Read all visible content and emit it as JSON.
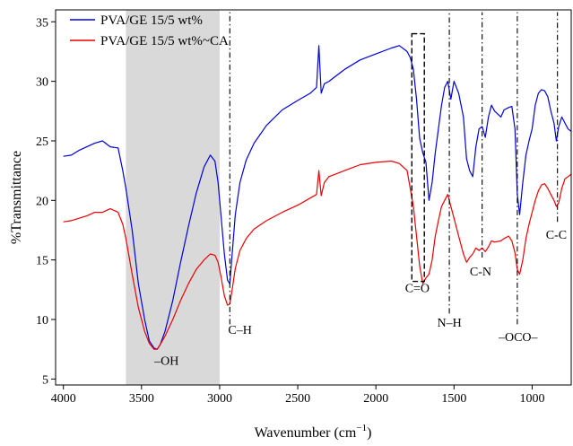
{
  "chart_data": {
    "type": "line",
    "title": "",
    "xlabel": "Wavenumber (cm",
    "xlabel_sup": "−1",
    "xlabel_close": ")",
    "ylabel": "%Transmittance",
    "xlim": [
      4050,
      750
    ],
    "ylim": [
      4.5,
      36
    ],
    "x_reversed": true,
    "xticks": [
      4000,
      3500,
      3000,
      2500,
      2000,
      1500,
      1000
    ],
    "xtick_labels": [
      "4000",
      "3500",
      "3000",
      "2500",
      "2000",
      "1500",
      "1000"
    ],
    "yticks": [
      5,
      10,
      15,
      20,
      25,
      30,
      35
    ],
    "ytick_labels": [
      "5",
      "10",
      "15",
      "20",
      "25",
      "30",
      "35"
    ],
    "grid": false,
    "legend_position": "top-left",
    "shaded_band": {
      "x_from": 3600,
      "x_to": 3000,
      "color": "#d9d9d9"
    },
    "series": [
      {
        "name": "PVA/GE 15/5 wt%",
        "color": "#0000dd",
        "x": [
          4000,
          3950,
          3900,
          3850,
          3800,
          3750,
          3700,
          3650,
          3620,
          3600,
          3560,
          3520,
          3480,
          3450,
          3420,
          3400,
          3380,
          3350,
          3300,
          3250,
          3200,
          3150,
          3100,
          3060,
          3030,
          3010,
          2990,
          2970,
          2950,
          2935,
          2920,
          2900,
          2870,
          2830,
          2780,
          2700,
          2600,
          2500,
          2420,
          2380,
          2365,
          2350,
          2330,
          2300,
          2200,
          2100,
          2000,
          1900,
          1850,
          1800,
          1780,
          1760,
          1740,
          1720,
          1700,
          1680,
          1660,
          1640,
          1620,
          1600,
          1580,
          1560,
          1540,
          1520,
          1500,
          1470,
          1440,
          1420,
          1400,
          1380,
          1360,
          1340,
          1320,
          1300,
          1280,
          1260,
          1240,
          1200,
          1180,
          1150,
          1130,
          1110,
          1095,
          1080,
          1060,
          1040,
          1020,
          1000,
          980,
          960,
          940,
          920,
          900,
          880,
          860,
          845,
          830,
          810,
          790,
          770,
          750
        ],
        "y": [
          23.7,
          23.8,
          24.2,
          24.5,
          24.8,
          25.0,
          24.5,
          24.4,
          22.5,
          21.0,
          17.5,
          13.0,
          10.0,
          8.2,
          7.6,
          7.5,
          7.9,
          9.0,
          11.6,
          14.8,
          17.8,
          20.6,
          22.8,
          23.8,
          23.3,
          21.5,
          18.5,
          15.5,
          13.3,
          13.0,
          15.5,
          18.8,
          21.5,
          23.4,
          24.8,
          26.3,
          27.6,
          28.4,
          29.0,
          29.5,
          33.0,
          29.0,
          29.8,
          30.0,
          31.0,
          31.8,
          32.3,
          32.8,
          33.0,
          32.5,
          32.0,
          31.0,
          28.5,
          25.2,
          24.0,
          23.2,
          20.0,
          21.5,
          24.0,
          26.0,
          28.0,
          29.5,
          30.0,
          28.5,
          30.0,
          29.0,
          27.0,
          23.5,
          22.5,
          22.0,
          24.5,
          26.0,
          26.2,
          25.3,
          27.0,
          28.0,
          27.5,
          27.0,
          27.6,
          27.8,
          27.9,
          26.0,
          20.5,
          18.8,
          21.5,
          23.8,
          25.0,
          26.0,
          28.0,
          29.0,
          29.3,
          29.2,
          28.7,
          27.5,
          26.5,
          25.0,
          26.2,
          27.0,
          26.5,
          26.0,
          25.8
        ]
      },
      {
        "name": "PVA/GE 15/5 wt%~CA",
        "color": "#ee0000",
        "x": [
          4000,
          3950,
          3900,
          3850,
          3800,
          3750,
          3700,
          3650,
          3620,
          3600,
          3560,
          3520,
          3480,
          3450,
          3420,
          3400,
          3380,
          3350,
          3300,
          3250,
          3200,
          3150,
          3100,
          3060,
          3030,
          3010,
          2990,
          2970,
          2950,
          2935,
          2920,
          2900,
          2870,
          2830,
          2780,
          2700,
          2600,
          2500,
          2420,
          2380,
          2365,
          2350,
          2330,
          2300,
          2200,
          2100,
          2000,
          1900,
          1850,
          1800,
          1780,
          1760,
          1740,
          1720,
          1700,
          1680,
          1660,
          1640,
          1620,
          1600,
          1580,
          1560,
          1540,
          1520,
          1500,
          1470,
          1440,
          1420,
          1400,
          1380,
          1360,
          1340,
          1320,
          1300,
          1280,
          1260,
          1240,
          1200,
          1180,
          1150,
          1130,
          1110,
          1095,
          1080,
          1060,
          1040,
          1020,
          1000,
          980,
          960,
          940,
          920,
          900,
          880,
          860,
          845,
          830,
          810,
          790,
          770,
          750
        ],
        "y": [
          18.2,
          18.3,
          18.5,
          18.7,
          19.0,
          19.0,
          19.3,
          19.0,
          18.0,
          16.8,
          13.8,
          11.0,
          9.0,
          8.0,
          7.5,
          7.5,
          7.9,
          8.6,
          10.0,
          11.6,
          13.0,
          14.2,
          15.0,
          15.5,
          15.4,
          14.8,
          13.5,
          12.0,
          11.2,
          11.3,
          12.5,
          14.3,
          15.8,
          16.8,
          17.6,
          18.3,
          19.0,
          19.6,
          20.2,
          20.5,
          22.5,
          20.4,
          21.5,
          22.0,
          22.5,
          23.0,
          23.2,
          23.3,
          23.1,
          22.5,
          21.0,
          19.5,
          17.0,
          14.5,
          13.0,
          13.5,
          13.8,
          15.0,
          17.0,
          18.3,
          19.5,
          20.0,
          20.5,
          19.5,
          18.5,
          17.0,
          15.5,
          14.8,
          15.2,
          15.5,
          16.0,
          15.8,
          16.0,
          15.7,
          16.1,
          16.6,
          16.5,
          16.6,
          16.8,
          17.0,
          16.6,
          15.6,
          14.2,
          13.8,
          15.0,
          16.8,
          18.0,
          19.0,
          20.0,
          20.8,
          21.3,
          21.4,
          21.0,
          20.5,
          20.0,
          19.5,
          19.8,
          21.0,
          21.8,
          22.0,
          22.2
        ]
      }
    ],
    "annotations": [
      {
        "text": "–OH",
        "x": 3340,
        "y": 6.2
      },
      {
        "text": "C–H",
        "x": 2870,
        "y": 8.8
      },
      {
        "text": "C=O",
        "x": 1735,
        "y": 12.3
      },
      {
        "text": "N–H",
        "x": 1530,
        "y": 9.4
      },
      {
        "text": "C-N",
        "x": 1330,
        "y": 13.7
      },
      {
        "text": "–OCO–",
        "x": 1090,
        "y": 8.2
      },
      {
        "text": "C-C",
        "x": 845,
        "y": 16.8
      }
    ],
    "vlines": [
      {
        "x": 2935,
        "y_from": 9.6,
        "y_to": 35.8
      },
      {
        "x": 1530,
        "y_from": 10.5,
        "y_to": 35.8
      },
      {
        "x": 1320,
        "y_from": 15.2,
        "y_to": 35.8
      },
      {
        "x": 1095,
        "y_from": 9.6,
        "y_to": 35.8
      },
      {
        "x": 838,
        "y_from": 18.2,
        "y_to": 35.8
      }
    ],
    "dashed_box": {
      "x_from": 1770,
      "x_to": 1690,
      "y_from": 13.2,
      "y_to": 34.0
    }
  }
}
